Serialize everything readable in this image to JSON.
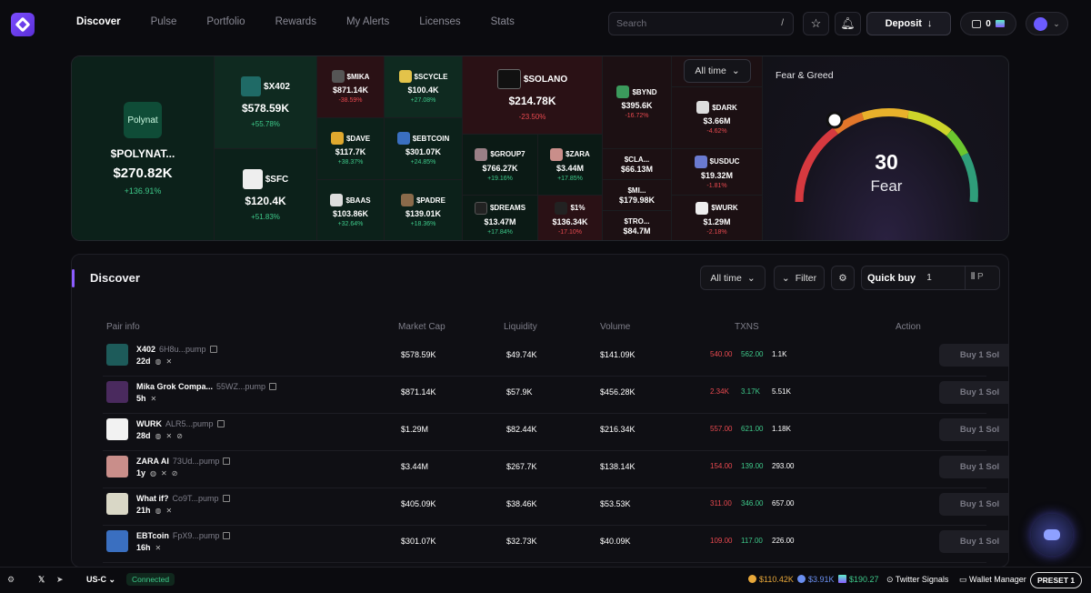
{
  "nav": {
    "items": [
      "Discover",
      "Pulse",
      "Portfolio",
      "Rewards",
      "My Alerts",
      "Licenses",
      "Stats"
    ],
    "search_placeholder": "Search",
    "search_shortcut": "/",
    "deposit_label": "Deposit",
    "deposit_icon": "↓",
    "wallet_balance": "0"
  },
  "heatmap": {
    "timeframe": "All time",
    "tiles": [
      {
        "name": "$POLYNAT...",
        "logo_text": "Polynat",
        "price": "$270.82K",
        "change": "+136.91%",
        "dir": "up"
      },
      {
        "name": "$X402",
        "price": "$578.59K",
        "change": "+55.78%",
        "dir": "up"
      },
      {
        "name": "$SFC",
        "price": "$120.4K",
        "change": "+51.83%",
        "dir": "up"
      },
      {
        "name": "$MIKA",
        "price": "$871.14K",
        "change": "-38.59%",
        "dir": "dn"
      },
      {
        "name": "$SCYCLE",
        "price": "$100.4K",
        "change": "+27.08%",
        "dir": "up"
      },
      {
        "name": "$DAVE",
        "price": "$117.7K",
        "change": "+38.37%",
        "dir": "up"
      },
      {
        "name": "$EBTCOIN",
        "price": "$301.07K",
        "change": "+24.85%",
        "dir": "up"
      },
      {
        "name": "$BAAS",
        "price": "$103.86K",
        "change": "+32.64%",
        "dir": "up"
      },
      {
        "name": "$PADRE",
        "price": "$139.01K",
        "change": "+18.36%",
        "dir": "up"
      },
      {
        "name": "$SOLANO",
        "price": "$214.78K",
        "change": "-23.50%",
        "dir": "dn"
      },
      {
        "name": "$GROUP7",
        "price": "$766.27K",
        "change": "+19.16%",
        "dir": "up"
      },
      {
        "name": "$ZARA",
        "price": "$3.44M",
        "change": "+17.85%",
        "dir": "up"
      },
      {
        "name": "$DREAMS",
        "price": "$13.47M",
        "change": "+17.84%",
        "dir": "up"
      },
      {
        "name": "$1%",
        "price": "$136.34K",
        "change": "-17.10%",
        "dir": "dn"
      },
      {
        "name": "$BYND",
        "price": "$395.6K",
        "change": "-16.72%",
        "dir": "dn"
      },
      {
        "name": "$CLA...",
        "price": "$66.13M",
        "change": "",
        "dir": "dn"
      },
      {
        "name": "$MI...",
        "price": "$179.98K",
        "change": "",
        "dir": "dn"
      },
      {
        "name": "$TRO...",
        "price": "$84.7M",
        "change": "",
        "dir": "dn"
      },
      {
        "name": "$DARK",
        "price": "$3.66M",
        "change": "-4.62%",
        "dir": "dn"
      },
      {
        "name": "$USDUC",
        "price": "$19.32M",
        "change": "-1.81%",
        "dir": "dn"
      },
      {
        "name": "$WURK",
        "price": "$1.29M",
        "change": "-2.18%",
        "dir": "dn"
      }
    ]
  },
  "fear_greed": {
    "title": "Fear & Greed",
    "value": "30",
    "label": "Fear"
  },
  "discover": {
    "title": "Discover",
    "timeframe": "All time",
    "filter_label": "Filter",
    "quick_buy_label": "Quick buy",
    "quick_buy_amount": "1",
    "preset_short": "P",
    "columns": [
      "Pair info",
      "Market Cap",
      "Liquidity",
      "Volume",
      "TXNS",
      "Action"
    ],
    "rows": [
      {
        "name": "X402",
        "addr": "6H8u...pump",
        "age": "22d",
        "mcap": "$578.59K",
        "liq": "$49.74K",
        "vol": "$141.09K",
        "buys": "540.00",
        "sells": "562.00",
        "total": "1.1K",
        "action": "Buy 1 Sol",
        "thumb": "#1d5b5a"
      },
      {
        "name": "Mika Grok Compa...",
        "addr": "55WZ...pump",
        "age": "5h",
        "mcap": "$871.14K",
        "liq": "$57.9K",
        "vol": "$456.28K",
        "buys": "2.34K",
        "sells": "3.17K",
        "total": "5.51K",
        "action": "Buy 1 Sol",
        "thumb": "#4a2a5e"
      },
      {
        "name": "WURK",
        "addr": "ALR5...pump",
        "age": "28d",
        "mcap": "$1.29M",
        "liq": "$82.44K",
        "vol": "$216.34K",
        "buys": "557.00",
        "sells": "621.00",
        "total": "1.18K",
        "action": "Buy 1 Sol",
        "thumb": "#f2f2f2"
      },
      {
        "name": "ZARA AI",
        "addr": "73Ud...pump",
        "age": "1y",
        "mcap": "$3.44M",
        "liq": "$267.7K",
        "vol": "$138.14K",
        "buys": "154.00",
        "sells": "139.00",
        "total": "293.00",
        "action": "Buy 1 Sol",
        "thumb": "#c98e8a"
      },
      {
        "name": "What if?",
        "addr": "Co9T...pump",
        "age": "21h",
        "mcap": "$405.09K",
        "liq": "$38.46K",
        "vol": "$53.53K",
        "buys": "311.00",
        "sells": "346.00",
        "total": "657.00",
        "action": "Buy 1 Sol",
        "thumb": "#d9d7c6"
      },
      {
        "name": "EBTcoin",
        "addr": "FpX9...pump",
        "age": "16h",
        "mcap": "$301.07K",
        "liq": "$32.73K",
        "vol": "$40.09K",
        "buys": "109.00",
        "sells": "117.00",
        "total": "226.00",
        "action": "Buy 1 Sol",
        "thumb": "#3a6fc0"
      }
    ]
  },
  "footer": {
    "region": "US-C",
    "status": "Connected",
    "btc": "$110.42K",
    "eth": "$3.91K",
    "sol": "$190.27",
    "twitter_signals": "Twitter Signals",
    "wallet_manager": "Wallet Manager",
    "preset": "PRESET 1"
  },
  "colors": {
    "accent": "#8c5cff",
    "green": "#3ec98a",
    "red": "#e8494f"
  }
}
